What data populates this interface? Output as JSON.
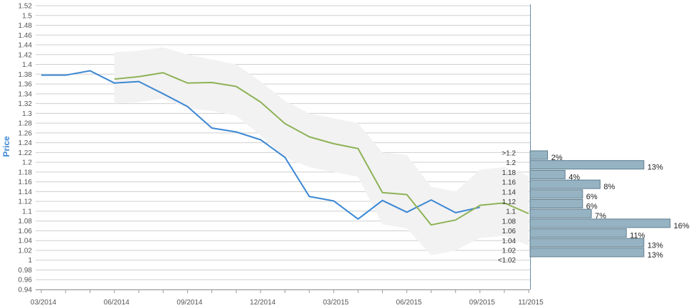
{
  "chart_data": {
    "type": "line",
    "ylabel": "Price",
    "ylim": [
      0.94,
      1.52
    ],
    "y_ticks": [
      "0.94",
      "0.96",
      "0.98",
      "1",
      "1.02",
      "1.04",
      "1.06",
      "1.08",
      "1.1",
      "1.12",
      "1.14",
      "1.16",
      "1.18",
      "1.2",
      "1.22",
      "1.24",
      "1.26",
      "1.28",
      "1.3",
      "1.32",
      "1.34",
      "1.36",
      "1.38",
      "1.4",
      "1.42",
      "1.44",
      "1.46",
      "1.48",
      "1.5",
      "1.52"
    ],
    "x_ticks": [
      "03/2014",
      "06/2014",
      "09/2014",
      "12/2014",
      "03/2015",
      "06/2015",
      "09/2015",
      "11/2015"
    ],
    "x_range": [
      "2014-03",
      "2015-11"
    ],
    "series": [
      {
        "color": "#3b87d4",
        "x": [
          "2014-03",
          "2014-04",
          "2014-05",
          "2014-06",
          "2014-07",
          "2014-08",
          "2014-09",
          "2014-10",
          "2014-11",
          "2014-12",
          "2015-01",
          "2015-02",
          "2015-03",
          "2015-04",
          "2015-05",
          "2015-06",
          "2015-07",
          "2015-08",
          "2015-09"
        ],
        "values": [
          1.378,
          1.378,
          1.387,
          1.362,
          1.365,
          1.34,
          1.314,
          1.27,
          1.262,
          1.246,
          1.21,
          1.13,
          1.121,
          1.084,
          1.122,
          1.098,
          1.123,
          1.097,
          1.108
        ]
      },
      {
        "color": "#8db255",
        "x": [
          "2014-06",
          "2014-07",
          "2014-08",
          "2014-09",
          "2014-10",
          "2014-11",
          "2014-12",
          "2015-01",
          "2015-02",
          "2015-03",
          "2015-04",
          "2015-05",
          "2015-06",
          "2015-07",
          "2015-08",
          "2015-09",
          "2015-10",
          "2015-11"
        ],
        "values": [
          1.37,
          1.375,
          1.383,
          1.362,
          1.363,
          1.355,
          1.323,
          1.279,
          1.252,
          1.238,
          1.228,
          1.138,
          1.134,
          1.072,
          1.082,
          1.112,
          1.117,
          1.095
        ]
      }
    ],
    "band": {
      "color": "#f2f2f2",
      "x": [
        "2014-06",
        "2014-07",
        "2014-08",
        "2014-09",
        "2014-10",
        "2014-11",
        "2014-12",
        "2015-01",
        "2015-02",
        "2015-03",
        "2015-04",
        "2015-05",
        "2015-06",
        "2015-07",
        "2015-08",
        "2015-09",
        "2015-10",
        "2015-11"
      ],
      "upper": [
        1.425,
        1.428,
        1.435,
        1.42,
        1.41,
        1.4,
        1.365,
        1.325,
        1.3,
        1.29,
        1.28,
        1.22,
        1.215,
        1.15,
        1.14,
        1.185,
        1.19,
        1.172
      ],
      "lower": [
        1.32,
        1.323,
        1.33,
        1.31,
        1.305,
        1.295,
        1.255,
        1.21,
        1.19,
        1.18,
        1.17,
        1.073,
        1.065,
        1.01,
        1.02,
        1.045,
        1.05,
        1.03
      ]
    },
    "histogram": {
      "color": "#96b3c3",
      "bins": [
        {
          "label": ">1.2",
          "pct": 2,
          "pct_label": "2%"
        },
        {
          "label": "1.2",
          "pct": 13,
          "pct_label": "13%"
        },
        {
          "label": "1.18",
          "pct": 4,
          "pct_label": "4%"
        },
        {
          "label": "1.16",
          "pct": 8,
          "pct_label": "8%"
        },
        {
          "label": "1.14",
          "pct": 6,
          "pct_label": "6%"
        },
        {
          "label": "1.12",
          "pct": 6,
          "pct_label": "6%"
        },
        {
          "label": "1.1",
          "pct": 7,
          "pct_label": "7%"
        },
        {
          "label": "1.08",
          "pct": 16,
          "pct_label": "16%"
        },
        {
          "label": "1.06",
          "pct": 11,
          "pct_label": "11%"
        },
        {
          "label": "1.04",
          "pct": 13,
          "pct_label": "13%"
        },
        {
          "label": "1.02",
          "pct": 13,
          "pct_label": "13%"
        },
        {
          "label": "<1.02",
          "pct": 0,
          "pct_label": ""
        }
      ]
    },
    "grid": true
  }
}
